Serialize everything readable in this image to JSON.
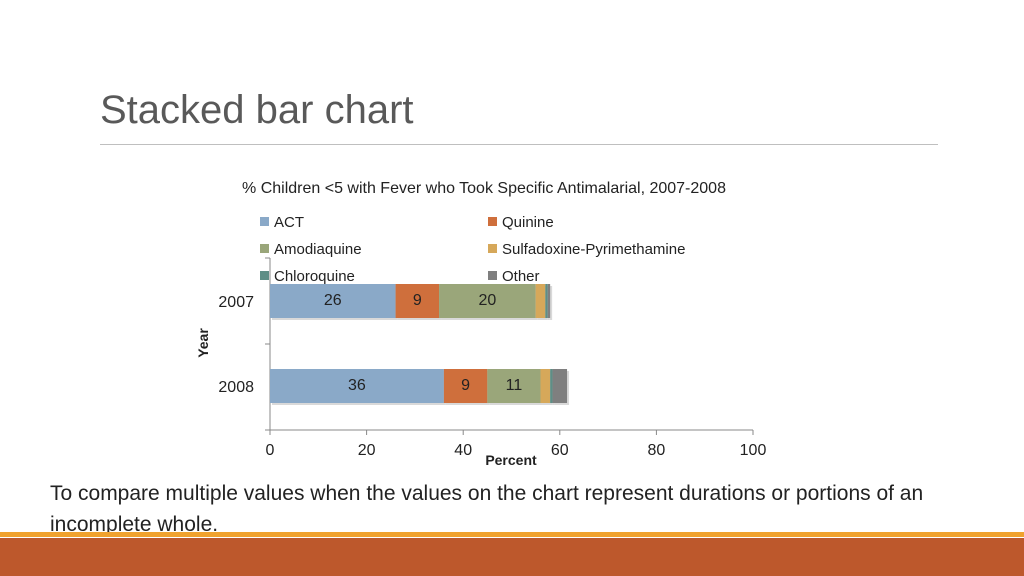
{
  "slide": {
    "title": "Stacked bar chart",
    "caption": "To compare multiple values when the values on the chart represent durations or portions of an incomplete whole."
  },
  "chart_data": {
    "type": "bar",
    "orientation": "horizontal",
    "stacked": true,
    "title": "% Children <5 with Fever who Took Specific Antimalarial, 2007-2008",
    "xlabel": "Percent",
    "ylabel": "Year",
    "categories": [
      "2007",
      "2008"
    ],
    "xlim": [
      0,
      100
    ],
    "x_ticks": [
      "0",
      "20",
      "40",
      "60",
      "80",
      "100"
    ],
    "grid": false,
    "legend_position": "top",
    "series": [
      {
        "name": "ACT",
        "color": "#8aa9c8",
        "values": [
          26,
          36
        ],
        "labels": [
          "26",
          "36"
        ]
      },
      {
        "name": "Quinine",
        "color": "#cf6f3c",
        "values": [
          9,
          9
        ],
        "labels": [
          "9",
          "9"
        ]
      },
      {
        "name": "Amodiaquine",
        "color": "#9aa67a",
        "values": [
          20,
          11
        ],
        "labels": [
          "20",
          "11"
        ]
      },
      {
        "name": "Sulfadoxine-Pyrimethamine",
        "color": "#d6a85a",
        "values": [
          2,
          2
        ],
        "labels": [
          "",
          ""
        ]
      },
      {
        "name": "Chloroquine",
        "color": "#5e8e86",
        "values": [
          0.5,
          0.5
        ],
        "labels": [
          "",
          ""
        ]
      },
      {
        "name": "Other",
        "color": "#7f7f7f",
        "values": [
          0.5,
          3
        ],
        "labels": [
          "",
          ""
        ]
      }
    ]
  },
  "footer": {
    "accent_color": "#f0a22e",
    "bar_color": "#bd582c"
  }
}
